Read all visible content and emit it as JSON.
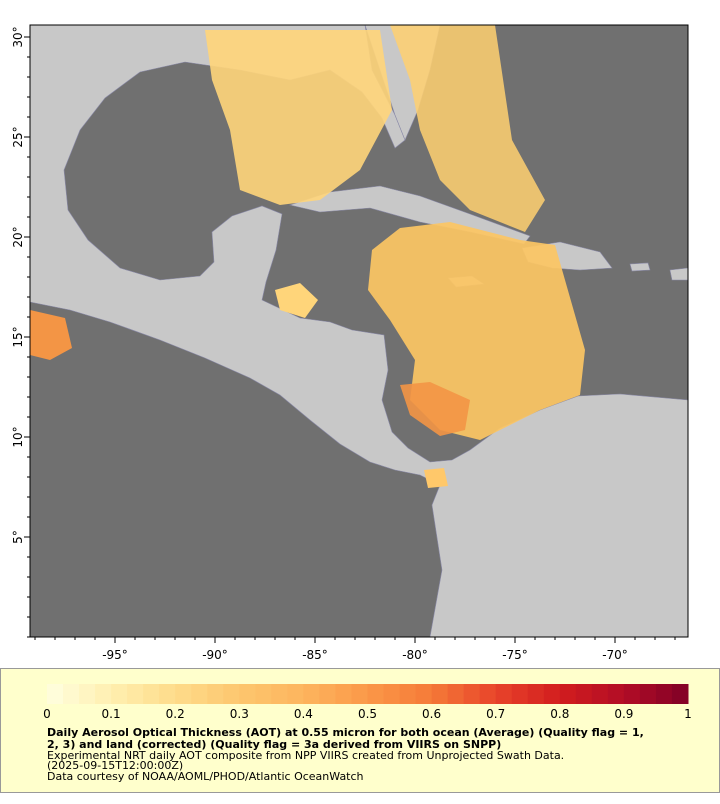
{
  "map": {
    "xlim": [
      -99.25,
      -66.35
    ],
    "ylim": [
      0,
      30.6
    ],
    "xticks": [
      {
        "value": -95,
        "label": "-95°"
      },
      {
        "value": -90,
        "label": "-90°"
      },
      {
        "value": -85,
        "label": "-85°"
      },
      {
        "value": -80,
        "label": "-80°"
      },
      {
        "value": -75,
        "label": "-75°"
      },
      {
        "value": -70,
        "label": "-70°"
      }
    ],
    "yticks": [
      {
        "value": 5,
        "label": "5°"
      },
      {
        "value": 10,
        "label": "10°"
      },
      {
        "value": 15,
        "label": "15°"
      },
      {
        "value": 20,
        "label": "20°"
      },
      {
        "value": 25,
        "label": "25°"
      },
      {
        "value": 30,
        "label": "30°"
      }
    ]
  },
  "colorbar": {
    "lim": [
      0,
      1
    ],
    "ticks": [
      0,
      0.1,
      0.2,
      0.3,
      0.4,
      0.5,
      0.6,
      0.7,
      0.8,
      0.9,
      1
    ],
    "colors": [
      "#ffffe0",
      "#ffefb0",
      "#fedc8a",
      "#fdc66e",
      "#fdb55e",
      "#fb9848",
      "#f57a38",
      "#e8442a",
      "#d21d1e",
      "#b20d26",
      "#800026"
    ]
  },
  "caption": {
    "title": [
      "Daily Aerosol Optical Thickness (AOT) at 0.55 micron for both ocean (Average) (Quality flag = 1,",
      "2, 3) and land (corrected) (Quality flag = 3a derived from VIIRS on SNPP)"
    ],
    "notes": [
      "Experimental NRT daily AOT composite from NPP VIIRS created from Unprojected Swath Data.",
      "(2025-09-15T12:00:00Z)",
      "Data courtesy of NOAA/AOML/PHOD/Atlantic OceanWatch"
    ]
  }
}
